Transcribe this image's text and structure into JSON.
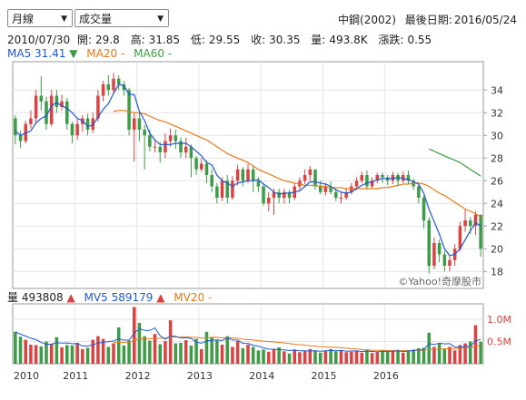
{
  "controls": {
    "period": "月線",
    "indicator": "成交量"
  },
  "header": {
    "stock": "中鋼(2002)",
    "last_trade_label": "最後日期:",
    "last_trade_date": "2016/05/24"
  },
  "ohlc": {
    "date": "2010/07/30",
    "open_label": "開:",
    "open": "29.8",
    "high_label": "高:",
    "high": "31.85",
    "low_label": "低:",
    "low": "29.55",
    "close_label": "收:",
    "close": "30.35",
    "volume_label": "量:",
    "volume": "493.8K",
    "change_label": "漲跌:",
    "change": "0.55"
  },
  "ma_legend": {
    "ma5_label": "MA5",
    "ma5_value": "31.41",
    "ma5_arrow": "▼",
    "ma20_label": "MA20",
    "ma20_value": "-",
    "ma60_label": "MA60",
    "ma60_value": "-"
  },
  "vol_legend": {
    "vol_label": "量",
    "vol_value": "493808",
    "vol_arrow": "▲",
    "mv5_label": "MV5",
    "mv5_value": "589179",
    "mv5_arrow": "▲",
    "mv20_label": "MV20",
    "mv20_value": "-"
  },
  "watermark": "©Yahoo!奇摩股市",
  "colors": {
    "up": "#d94343",
    "down": "#3e9c48",
    "ma5": "#1f58d0",
    "ma20": "#e67a1c",
    "ma60": "#3e9c48",
    "grid": "#e4e4e4",
    "axis": "#555555"
  },
  "chart_data": {
    "type": "candlestick",
    "interval": "monthly",
    "start": "2010-01",
    "price_axis": {
      "ylim": [
        16.5,
        36.5
      ],
      "ticks": [
        18,
        20,
        22,
        24,
        26,
        28,
        30,
        32,
        34
      ]
    },
    "volume_axis": {
      "ylim": [
        0,
        1350000
      ],
      "ticks": [
        500000,
        1000000
      ],
      "tick_labels": [
        "0.5M",
        "1.0M"
      ]
    },
    "year_labels": [
      "2010",
      "2011",
      "2012",
      "2013",
      "2014",
      "2015",
      "2016"
    ],
    "candles": [
      [
        31.5,
        30.0,
        31.8,
        29.2
      ],
      [
        30.0,
        29.5,
        30.4,
        28.9
      ],
      [
        29.5,
        31.0,
        31.3,
        29.3
      ],
      [
        31.0,
        31.5,
        32.2,
        30.6
      ],
      [
        31.5,
        33.5,
        34.0,
        31.0
      ],
      [
        33.5,
        33.0,
        35.2,
        32.2
      ],
      [
        33.0,
        31.0,
        33.4,
        30.5
      ],
      [
        31.0,
        33.5,
        34.0,
        30.8
      ],
      [
        33.5,
        32.5,
        34.0,
        32.0
      ],
      [
        32.5,
        33.0,
        33.6,
        32.2
      ],
      [
        33.0,
        31.0,
        33.3,
        30.5
      ],
      [
        31.0,
        30.0,
        31.2,
        29.3
      ],
      [
        30.0,
        31.0,
        31.5,
        29.6
      ],
      [
        31.0,
        31.5,
        31.8,
        30.3
      ],
      [
        31.5,
        30.5,
        31.9,
        30.0
      ],
      [
        30.5,
        31.5,
        32.0,
        30.2
      ],
      [
        31.5,
        33.5,
        34.0,
        31.2
      ],
      [
        33.5,
        34.5,
        34.8,
        33.0
      ],
      [
        34.5,
        34.0,
        35.3,
        33.5
      ],
      [
        34.0,
        35.0,
        35.5,
        33.6
      ],
      [
        35.0,
        34.5,
        35.3,
        34.0
      ],
      [
        34.5,
        34.0,
        34.8,
        33.5
      ],
      [
        34.0,
        30.5,
        34.2,
        30.0
      ],
      [
        30.5,
        31.5,
        32.0,
        27.7
      ],
      [
        31.5,
        30.5,
        32.0,
        29.5
      ],
      [
        30.5,
        30.0,
        30.9,
        27.0
      ],
      [
        30.0,
        29.0,
        30.5,
        28.6
      ],
      [
        29.0,
        29.0,
        29.5,
        28.5
      ],
      [
        29.0,
        28.5,
        29.4,
        27.6
      ],
      [
        28.5,
        29.5,
        30.2,
        28.0
      ],
      [
        29.5,
        30.0,
        30.6,
        29.0
      ],
      [
        30.0,
        29.5,
        30.5,
        28.8
      ],
      [
        29.5,
        28.5,
        29.8,
        28.0
      ],
      [
        28.5,
        29.0,
        29.8,
        28.0
      ],
      [
        29.0,
        28.0,
        29.2,
        26.3
      ],
      [
        28.0,
        27.0,
        28.2,
        26.5
      ],
      [
        27.0,
        27.5,
        28.0,
        26.8
      ],
      [
        27.5,
        26.5,
        27.8,
        25.8
      ],
      [
        26.5,
        25.5,
        27.0,
        25.0
      ],
      [
        25.5,
        24.5,
        25.8,
        24.0
      ],
      [
        24.5,
        26.0,
        26.3,
        24.2
      ],
      [
        26.0,
        24.5,
        26.5,
        24.0
      ],
      [
        24.5,
        26.0,
        26.4,
        24.3
      ],
      [
        26.0,
        27.0,
        27.4,
        25.6
      ],
      [
        27.0,
        26.0,
        27.2,
        25.5
      ],
      [
        26.0,
        27.0,
        27.5,
        25.8
      ],
      [
        27.0,
        26.0,
        27.3,
        25.0
      ],
      [
        26.0,
        25.5,
        26.3,
        25.0
      ],
      [
        25.5,
        24.0,
        25.8,
        23.8
      ],
      [
        24.0,
        24.5,
        25.0,
        23.3
      ],
      [
        24.5,
        25.0,
        25.3,
        23.0
      ],
      [
        25.0,
        24.5,
        25.3,
        24.0
      ],
      [
        24.5,
        25.0,
        25.3,
        24.0
      ],
      [
        25.0,
        24.5,
        25.2,
        24.0
      ],
      [
        24.5,
        25.5,
        25.8,
        24.3
      ],
      [
        25.5,
        26.0,
        26.3,
        25.2
      ],
      [
        26.0,
        26.5,
        27.0,
        25.7
      ],
      [
        26.5,
        27.0,
        27.3,
        26.0
      ],
      [
        27.0,
        25.5,
        27.0,
        25.2
      ],
      [
        25.5,
        25.0,
        26.0,
        24.8
      ],
      [
        25.0,
        25.5,
        25.8,
        24.7
      ],
      [
        25.5,
        25.0,
        25.9,
        24.8
      ],
      [
        25.0,
        24.5,
        25.3,
        24.2
      ],
      [
        24.5,
        24.5,
        25.0,
        24.0
      ],
      [
        24.5,
        25.0,
        25.3,
        24.3
      ],
      [
        25.0,
        25.5,
        25.8,
        24.8
      ],
      [
        25.5,
        26.0,
        26.3,
        25.2
      ],
      [
        26.0,
        26.5,
        26.8,
        25.8
      ],
      [
        26.5,
        25.5,
        26.9,
        25.2
      ],
      [
        25.5,
        26.0,
        26.3,
        25.3
      ],
      [
        26.0,
        26.5,
        26.7,
        25.8
      ],
      [
        26.5,
        26.3,
        26.7,
        25.8
      ],
      [
        26.3,
        26.0,
        26.5,
        25.6
      ],
      [
        26.0,
        26.5,
        26.8,
        25.7
      ],
      [
        26.5,
        26.0,
        26.7,
        25.5
      ],
      [
        26.0,
        26.5,
        26.8,
        25.8
      ],
      [
        26.5,
        26.0,
        26.9,
        25.7
      ],
      [
        26.0,
        25.5,
        26.2,
        25.2
      ],
      [
        25.5,
        24.5,
        25.7,
        24.0
      ],
      [
        24.5,
        22.5,
        24.7,
        21.8
      ],
      [
        22.5,
        18.5,
        22.8,
        17.8
      ],
      [
        18.5,
        20.5,
        21.0,
        18.2
      ],
      [
        20.5,
        19.5,
        20.8,
        18.8
      ],
      [
        19.5,
        18.5,
        19.8,
        18.0
      ],
      [
        18.5,
        19.0,
        19.4,
        18.0
      ],
      [
        19.0,
        20.0,
        20.4,
        18.5
      ],
      [
        20.0,
        22.0,
        22.4,
        19.8
      ],
      [
        22.0,
        22.5,
        23.5,
        21.5
      ],
      [
        22.5,
        22.0,
        22.8,
        21.3
      ],
      [
        22.0,
        23.0,
        23.3,
        21.2
      ],
      [
        23.0,
        20.0,
        23.0,
        19.3
      ]
    ],
    "volumes": [
      720,
      610,
      540,
      430,
      420,
      390,
      500,
      450,
      600,
      370,
      420,
      410,
      470,
      330,
      360,
      540,
      620,
      560,
      380,
      460,
      820,
      410,
      520,
      1280,
      920,
      620,
      520,
      670,
      440,
      510,
      980,
      460,
      470,
      530,
      410,
      560,
      330,
      720,
      600,
      530,
      430,
      620,
      380,
      510,
      350,
      430,
      380,
      300,
      320,
      270,
      320,
      370,
      280,
      230,
      320,
      260,
      290,
      330,
      300,
      250,
      290,
      330,
      280,
      300,
      260,
      270,
      290,
      250,
      320,
      240,
      260,
      300,
      270,
      290,
      310,
      250,
      300,
      320,
      350,
      360,
      700,
      380,
      450,
      340,
      380,
      300,
      420,
      460,
      500,
      870,
      494
    ],
    "ma5": [
      30.4,
      30.0,
      30.2,
      30.4,
      31.1,
      31.5,
      31.7,
      32.6,
      32.9,
      32.6,
      32.4,
      32.0,
      31.5,
      31.3,
      30.8,
      30.9,
      31.6,
      32.3,
      32.8,
      33.7,
      34.5,
      34.4,
      33.6,
      33.6,
      32.1,
      31.3,
      30.2,
      29.6,
      29.2,
      29.2,
      29.2,
      29.3,
      29.3,
      29.3,
      29.0,
      28.6,
      28.2,
      27.6,
      27.4,
      26.5,
      26.0,
      25.8,
      25.5,
      25.8,
      25.9,
      26.0,
      26.0,
      26.1,
      25.7,
      25.4,
      25.0,
      24.8,
      24.9,
      24.9,
      25.0,
      25.1,
      25.5,
      25.9,
      25.9,
      25.8,
      25.7,
      25.5,
      25.2,
      25.0,
      24.9,
      25.0,
      25.3,
      25.6,
      25.8,
      25.9,
      26.1,
      26.2,
      26.2,
      26.2,
      26.3,
      26.2,
      26.1,
      25.9,
      25.7,
      24.9,
      23.5,
      22.4,
      21.3,
      20.0,
      19.4,
      19.5,
      20.0,
      20.8,
      21.6,
      22.3,
      22.0
    ],
    "ma20": [
      null,
      null,
      null,
      null,
      null,
      null,
      null,
      null,
      null,
      null,
      null,
      null,
      null,
      null,
      null,
      null,
      null,
      null,
      null,
      32.1,
      32.2,
      32.2,
      32.1,
      32.0,
      32.0,
      31.9,
      31.7,
      31.5,
      31.3,
      31.2,
      31.0,
      30.8,
      30.6,
      30.4,
      30.2,
      30.0,
      29.8,
      29.6,
      29.3,
      29.0,
      28.7,
      28.4,
      28.2,
      28.0,
      27.8,
      27.6,
      27.3,
      27.0,
      26.8,
      26.6,
      26.4,
      26.2,
      26.0,
      25.9,
      25.8,
      25.7,
      25.6,
      25.6,
      25.6,
      25.5,
      25.5,
      25.4,
      25.4,
      25.4,
      25.3,
      25.3,
      25.3,
      25.3,
      25.3,
      25.3,
      25.3,
      25.4,
      25.4,
      25.5,
      25.6,
      25.7,
      25.7,
      25.8,
      25.8,
      25.7,
      25.5,
      25.2,
      24.9,
      24.7,
      24.4,
      24.1,
      23.8,
      23.5,
      23.3,
      23.1,
      22.8
    ],
    "ma60": [
      null,
      null,
      null,
      null,
      null,
      null,
      null,
      null,
      null,
      null,
      null,
      null,
      null,
      null,
      null,
      null,
      null,
      null,
      null,
      null,
      null,
      null,
      null,
      null,
      null,
      null,
      null,
      null,
      null,
      null,
      null,
      null,
      null,
      null,
      null,
      null,
      null,
      null,
      null,
      null,
      null,
      null,
      null,
      null,
      null,
      null,
      null,
      null,
      null,
      null,
      null,
      null,
      null,
      null,
      null,
      null,
      null,
      null,
      null,
      null,
      null,
      null,
      null,
      null,
      null,
      null,
      null,
      null,
      null,
      null,
      null,
      null,
      null,
      null,
      null,
      null,
      null,
      null,
      null,
      null,
      28.8,
      28.6,
      28.4,
      28.2,
      28.0,
      27.8,
      27.6,
      27.3,
      27.0,
      26.7,
      26.4
    ],
    "mv5": [
      720,
      665,
      623,
      575,
      544,
      478,
      438,
      442,
      472,
      466,
      468,
      450,
      454,
      400,
      398,
      426,
      466,
      482,
      498,
      514,
      562,
      532,
      532,
      694,
      790,
      750,
      748,
      806,
      634,
      552,
      624,
      620,
      576,
      590,
      570,
      486,
      462,
      514,
      530,
      538,
      522,
      580,
      536,
      532,
      458,
      458,
      418,
      394,
      356,
      330,
      328,
      318,
      312,
      298,
      304,
      292,
      290,
      288,
      292,
      282,
      290,
      302,
      292,
      300,
      282,
      286,
      290,
      276,
      284,
      276,
      268,
      278,
      278,
      282,
      290,
      274,
      286,
      298,
      312,
      312,
      452,
      434,
      462,
      448,
      454,
      372,
      378,
      384,
      396,
      518,
      546
    ],
    "mv20": [
      null,
      null,
      null,
      null,
      null,
      null,
      null,
      null,
      null,
      null,
      null,
      null,
      null,
      null,
      null,
      null,
      null,
      null,
      null,
      480,
      485,
      480,
      485,
      530,
      555,
      565,
      565,
      575,
      575,
      578,
      600,
      603,
      600,
      604,
      596,
      596,
      579,
      585,
      596,
      600,
      580,
      590,
      583,
      575,
      552,
      545,
      538,
      520,
      510,
      500,
      490,
      480,
      470,
      455,
      440,
      430,
      420,
      405,
      398,
      385,
      380,
      375,
      370,
      360,
      350,
      340,
      335,
      320,
      310,
      305,
      300,
      300,
      298,
      298,
      296,
      295,
      295,
      297,
      300,
      305,
      320,
      325,
      330,
      335,
      340,
      345,
      350,
      360,
      370,
      390,
      405
    ]
  }
}
